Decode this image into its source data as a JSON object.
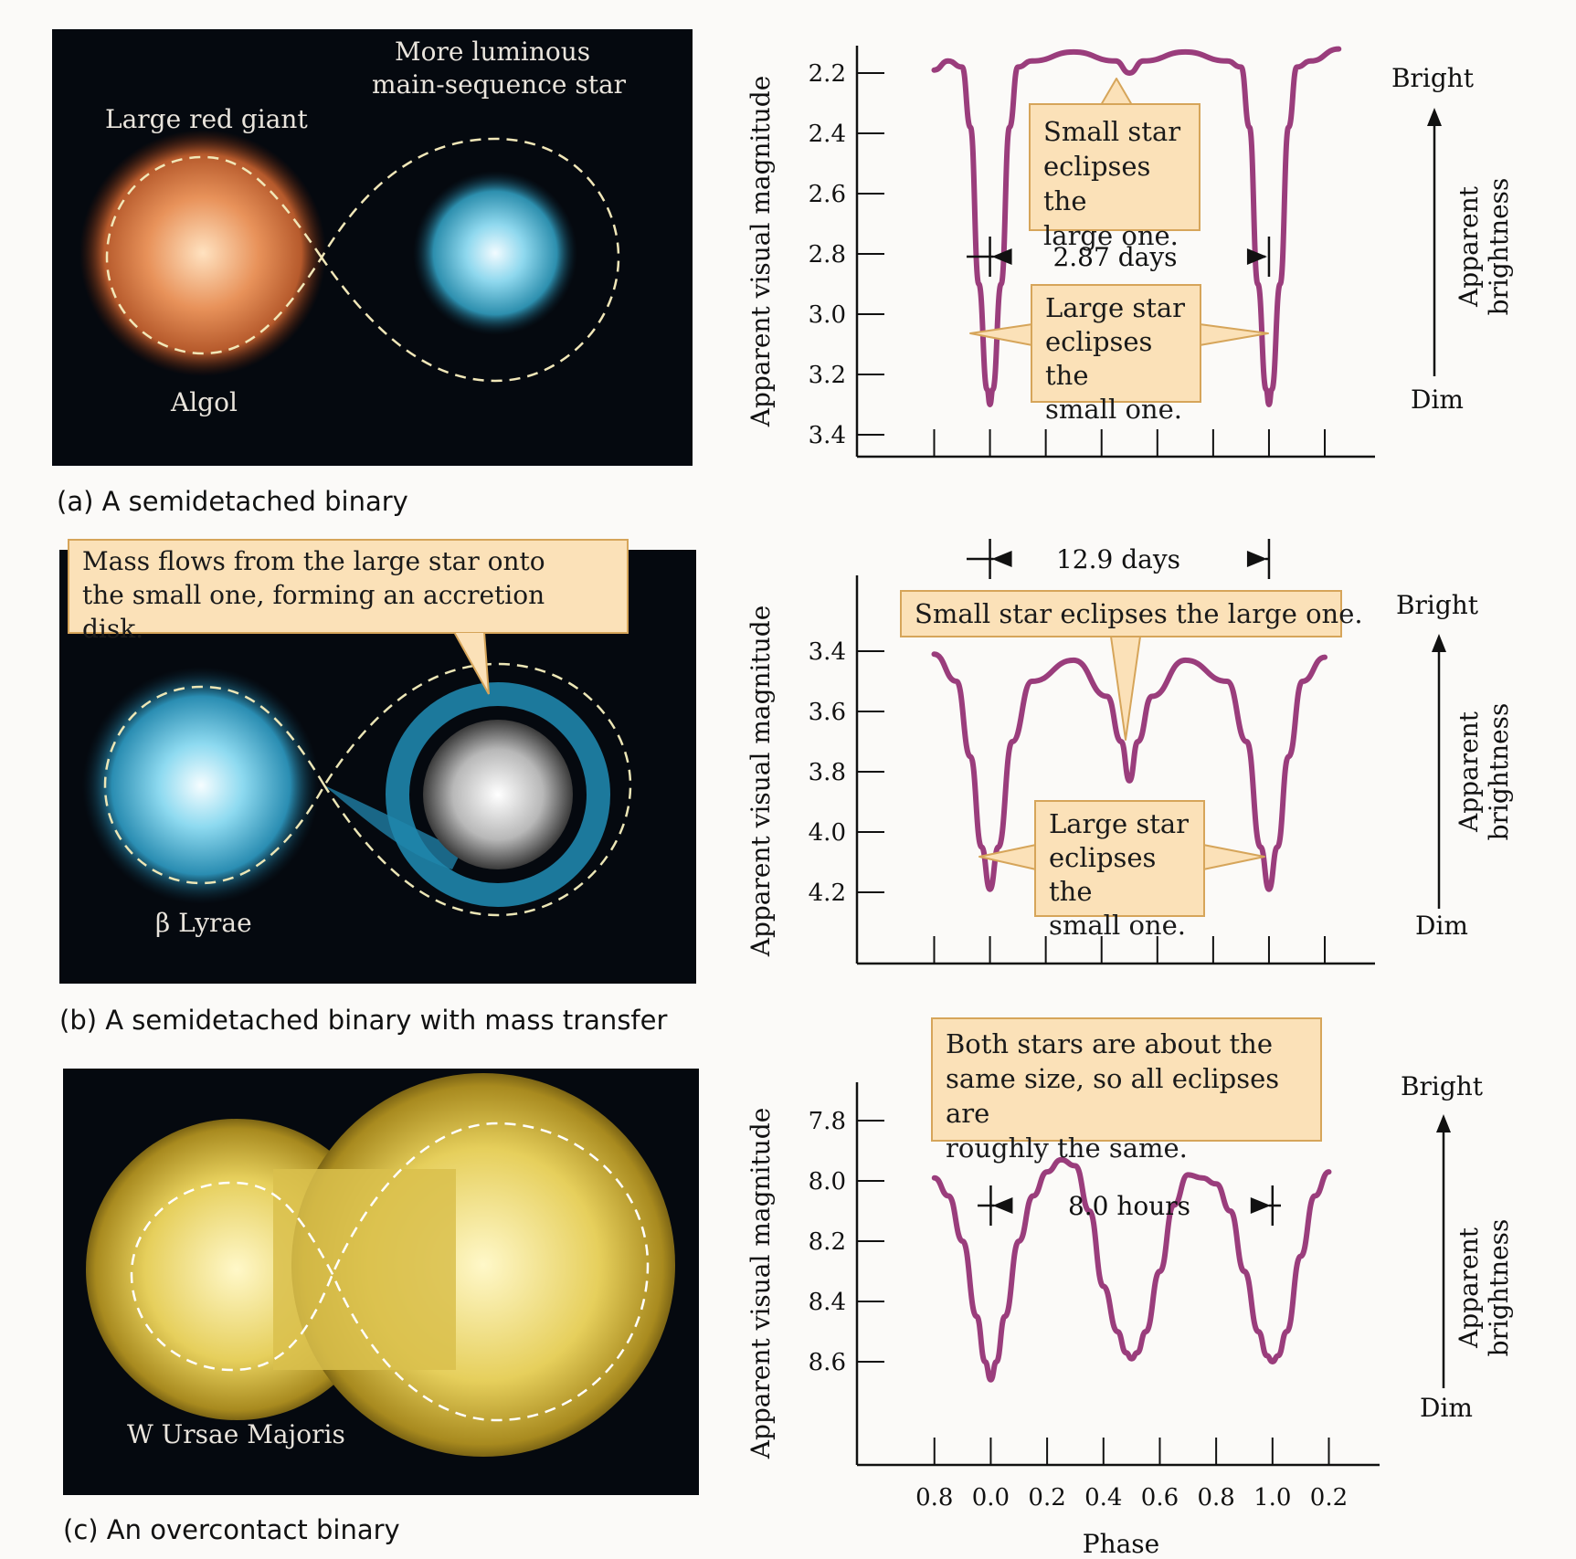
{
  "panels": [
    {
      "caption": "(a) A semidetached binary",
      "labels": {
        "giant": "Large red giant",
        "main_line1": "More luminous",
        "main_line2": "main-sequence star",
        "system": "Algol"
      }
    },
    {
      "caption": "(b) A semidetached binary with mass transfer",
      "labels": {
        "system": "β Lyrae"
      },
      "callout": {
        "line1": "Mass flows from the large star onto",
        "line2": "the small one, forming an accretion disk."
      }
    },
    {
      "caption": "(c) An overcontact binary",
      "labels": {
        "system": "W Ursae Majoris"
      }
    }
  ],
  "colors": {
    "curve": "#9a3d7c",
    "callout_fill": "#fbe1b8",
    "callout_border": "#d6a55a"
  },
  "chart_data": [
    {
      "type": "line",
      "ylabel": "Apparent visual magnitude",
      "yticks": [
        "2.2",
        "2.4",
        "2.6",
        "2.8",
        "3.0",
        "3.2",
        "3.4"
      ],
      "ylim": [
        2.1,
        3.5
      ],
      "xlim": [
        -0.29,
        1.38
      ],
      "x": [
        -0.2,
        -0.15,
        -0.1,
        -0.07,
        -0.04,
        -0.01,
        0.0,
        0.01,
        0.04,
        0.07,
        0.1,
        0.15,
        0.3,
        0.45,
        0.5,
        0.55,
        0.7,
        0.85,
        0.9,
        0.93,
        0.96,
        0.99,
        1.0,
        1.01,
        1.04,
        1.07,
        1.1,
        1.15,
        1.25
      ],
      "y": [
        2.19,
        2.16,
        2.18,
        2.38,
        2.9,
        3.25,
        3.3,
        3.25,
        2.9,
        2.38,
        2.18,
        2.16,
        2.13,
        2.16,
        2.2,
        2.16,
        2.13,
        2.16,
        2.18,
        2.38,
        2.9,
        3.25,
        3.3,
        3.25,
        2.9,
        2.38,
        2.18,
        2.16,
        2.12
      ],
      "period_label": "2.87 days",
      "callouts": [
        {
          "lines": [
            "Small star",
            "eclipses the",
            "large one."
          ]
        },
        {
          "lines": [
            "Large star",
            "eclipses the",
            "small one."
          ]
        }
      ],
      "brightness_axis": {
        "top": "Bright",
        "bottom": "Dim",
        "line1": "Apparent",
        "line2": "brightness"
      }
    },
    {
      "type": "line",
      "ylabel": "Apparent visual magnitude",
      "yticks": [
        "3.4",
        "3.6",
        "3.8",
        "4.0",
        "4.2"
      ],
      "ylim": [
        3.3,
        4.45
      ],
      "xlim": [
        -0.29,
        1.38
      ],
      "x": [
        -0.2,
        -0.12,
        -0.07,
        -0.03,
        0.0,
        0.03,
        0.08,
        0.15,
        0.3,
        0.42,
        0.47,
        0.5,
        0.53,
        0.58,
        0.7,
        0.85,
        0.92,
        0.97,
        1.0,
        1.03,
        1.07,
        1.12,
        1.2
      ],
      "y": [
        3.41,
        3.5,
        3.75,
        4.05,
        4.19,
        4.05,
        3.7,
        3.5,
        3.43,
        3.55,
        3.7,
        3.83,
        3.7,
        3.55,
        3.43,
        3.5,
        3.7,
        4.05,
        4.19,
        4.05,
        3.75,
        3.5,
        3.42
      ],
      "period_label": "12.9 days",
      "callouts": [
        {
          "lines": [
            "Small star eclipses the large one."
          ]
        },
        {
          "lines": [
            "Large star",
            "eclipses the",
            "small one."
          ]
        }
      ],
      "brightness_axis": {
        "top": "Bright",
        "bottom": "Dim",
        "line1": "Apparent",
        "line2": "brightness"
      }
    },
    {
      "type": "line",
      "ylabel": "Apparent visual magnitude",
      "yticks": [
        "7.8",
        "8.0",
        "8.2",
        "8.4",
        "8.6"
      ],
      "ylim": [
        7.68,
        8.74
      ],
      "xlim": [
        -0.29,
        1.38
      ],
      "xlabel": "Phase",
      "xticks": [
        "0.8",
        "0.0",
        "0.2",
        "0.4",
        "0.6",
        "0.8",
        "1.0",
        "0.2"
      ],
      "x": [
        -0.2,
        -0.15,
        -0.1,
        -0.05,
        -0.02,
        0.0,
        0.02,
        0.05,
        0.1,
        0.15,
        0.2,
        0.25,
        0.3,
        0.35,
        0.4,
        0.45,
        0.48,
        0.5,
        0.52,
        0.55,
        0.6,
        0.65,
        0.7,
        0.75,
        0.8,
        0.85,
        0.9,
        0.95,
        0.98,
        1.0,
        1.02,
        1.05,
        1.1,
        1.15,
        1.2
      ],
      "y": [
        7.99,
        8.05,
        8.2,
        8.45,
        8.6,
        8.66,
        8.6,
        8.45,
        8.2,
        8.05,
        7.97,
        7.93,
        7.95,
        8.1,
        8.35,
        8.5,
        8.57,
        8.59,
        8.57,
        8.5,
        8.3,
        8.08,
        7.98,
        7.99,
        8.01,
        8.1,
        8.3,
        8.5,
        8.58,
        8.6,
        8.58,
        8.5,
        8.25,
        8.05,
        7.97
      ],
      "period_label": "8.0 hours",
      "callouts": [
        {
          "lines": [
            "Both stars are about the",
            "same size, so all eclipses are",
            "roughly the same."
          ]
        }
      ],
      "brightness_axis": {
        "top": "Bright",
        "bottom": "Dim",
        "line1": "Apparent",
        "line2": "brightness"
      }
    }
  ]
}
